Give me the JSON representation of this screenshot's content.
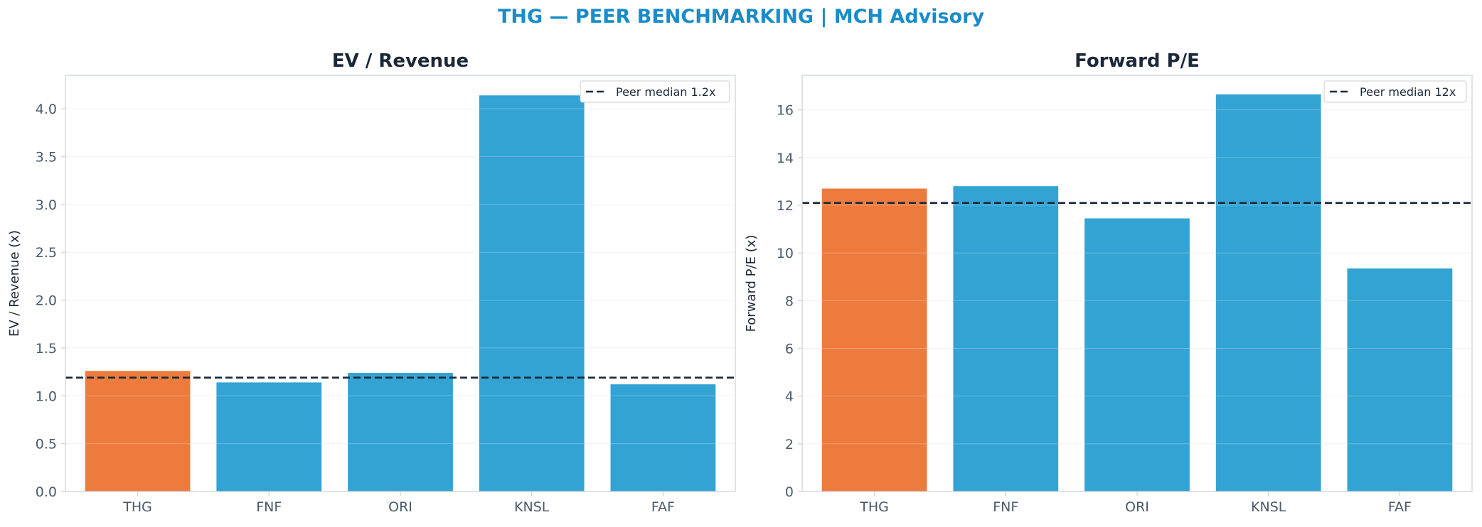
{
  "figure": {
    "suptitle": "THG — PEER BENCHMARKING | MCH Advisory"
  },
  "colors": {
    "title_accent": "#1a8cc8",
    "highlight_bar": "#ed7b3e",
    "peer_bar": "#33a3d4",
    "median_line": "#1b2838",
    "text_dark": "#1b2838",
    "tick_text": "#4a5a6a",
    "axes_edge": "#d0d4d8",
    "grid": "#eeeeee"
  },
  "chart_data": [
    {
      "type": "bar",
      "title": "EV / Revenue",
      "ylabel": "EV / Revenue (x)",
      "categories": [
        "THG",
        "FNF",
        "ORI",
        "KNSL",
        "FAF"
      ],
      "values": [
        1.26,
        1.14,
        1.24,
        4.14,
        1.12
      ],
      "highlight": "THG",
      "ylim": [
        0,
        4.35
      ],
      "yticks": [
        0.0,
        0.5,
        1.0,
        1.5,
        2.0,
        2.5,
        3.0,
        3.5,
        4.0
      ],
      "ytick_labels": [
        "0.0",
        "0.5",
        "1.0",
        "1.5",
        "2.0",
        "2.5",
        "3.0",
        "3.5",
        "4.0"
      ],
      "median": {
        "value": 1.19,
        "label": "Peer median 1.2x"
      },
      "grid": "y",
      "legend": "top-right"
    },
    {
      "type": "bar",
      "title": "Forward P/E",
      "ylabel": "Forward P/E (x)",
      "categories": [
        "THG",
        "FNF",
        "ORI",
        "KNSL",
        "FAF"
      ],
      "values": [
        12.7,
        12.8,
        11.45,
        16.65,
        9.35
      ],
      "highlight": "THG",
      "ylim": [
        0,
        17.45
      ],
      "yticks": [
        0,
        2,
        4,
        6,
        8,
        10,
        12,
        14,
        16
      ],
      "ytick_labels": [
        "0",
        "2",
        "4",
        "6",
        "8",
        "10",
        "12",
        "14",
        "16"
      ],
      "median": {
        "value": 12.1,
        "label": "Peer median 12x"
      },
      "grid": "y",
      "legend": "top-right"
    }
  ]
}
